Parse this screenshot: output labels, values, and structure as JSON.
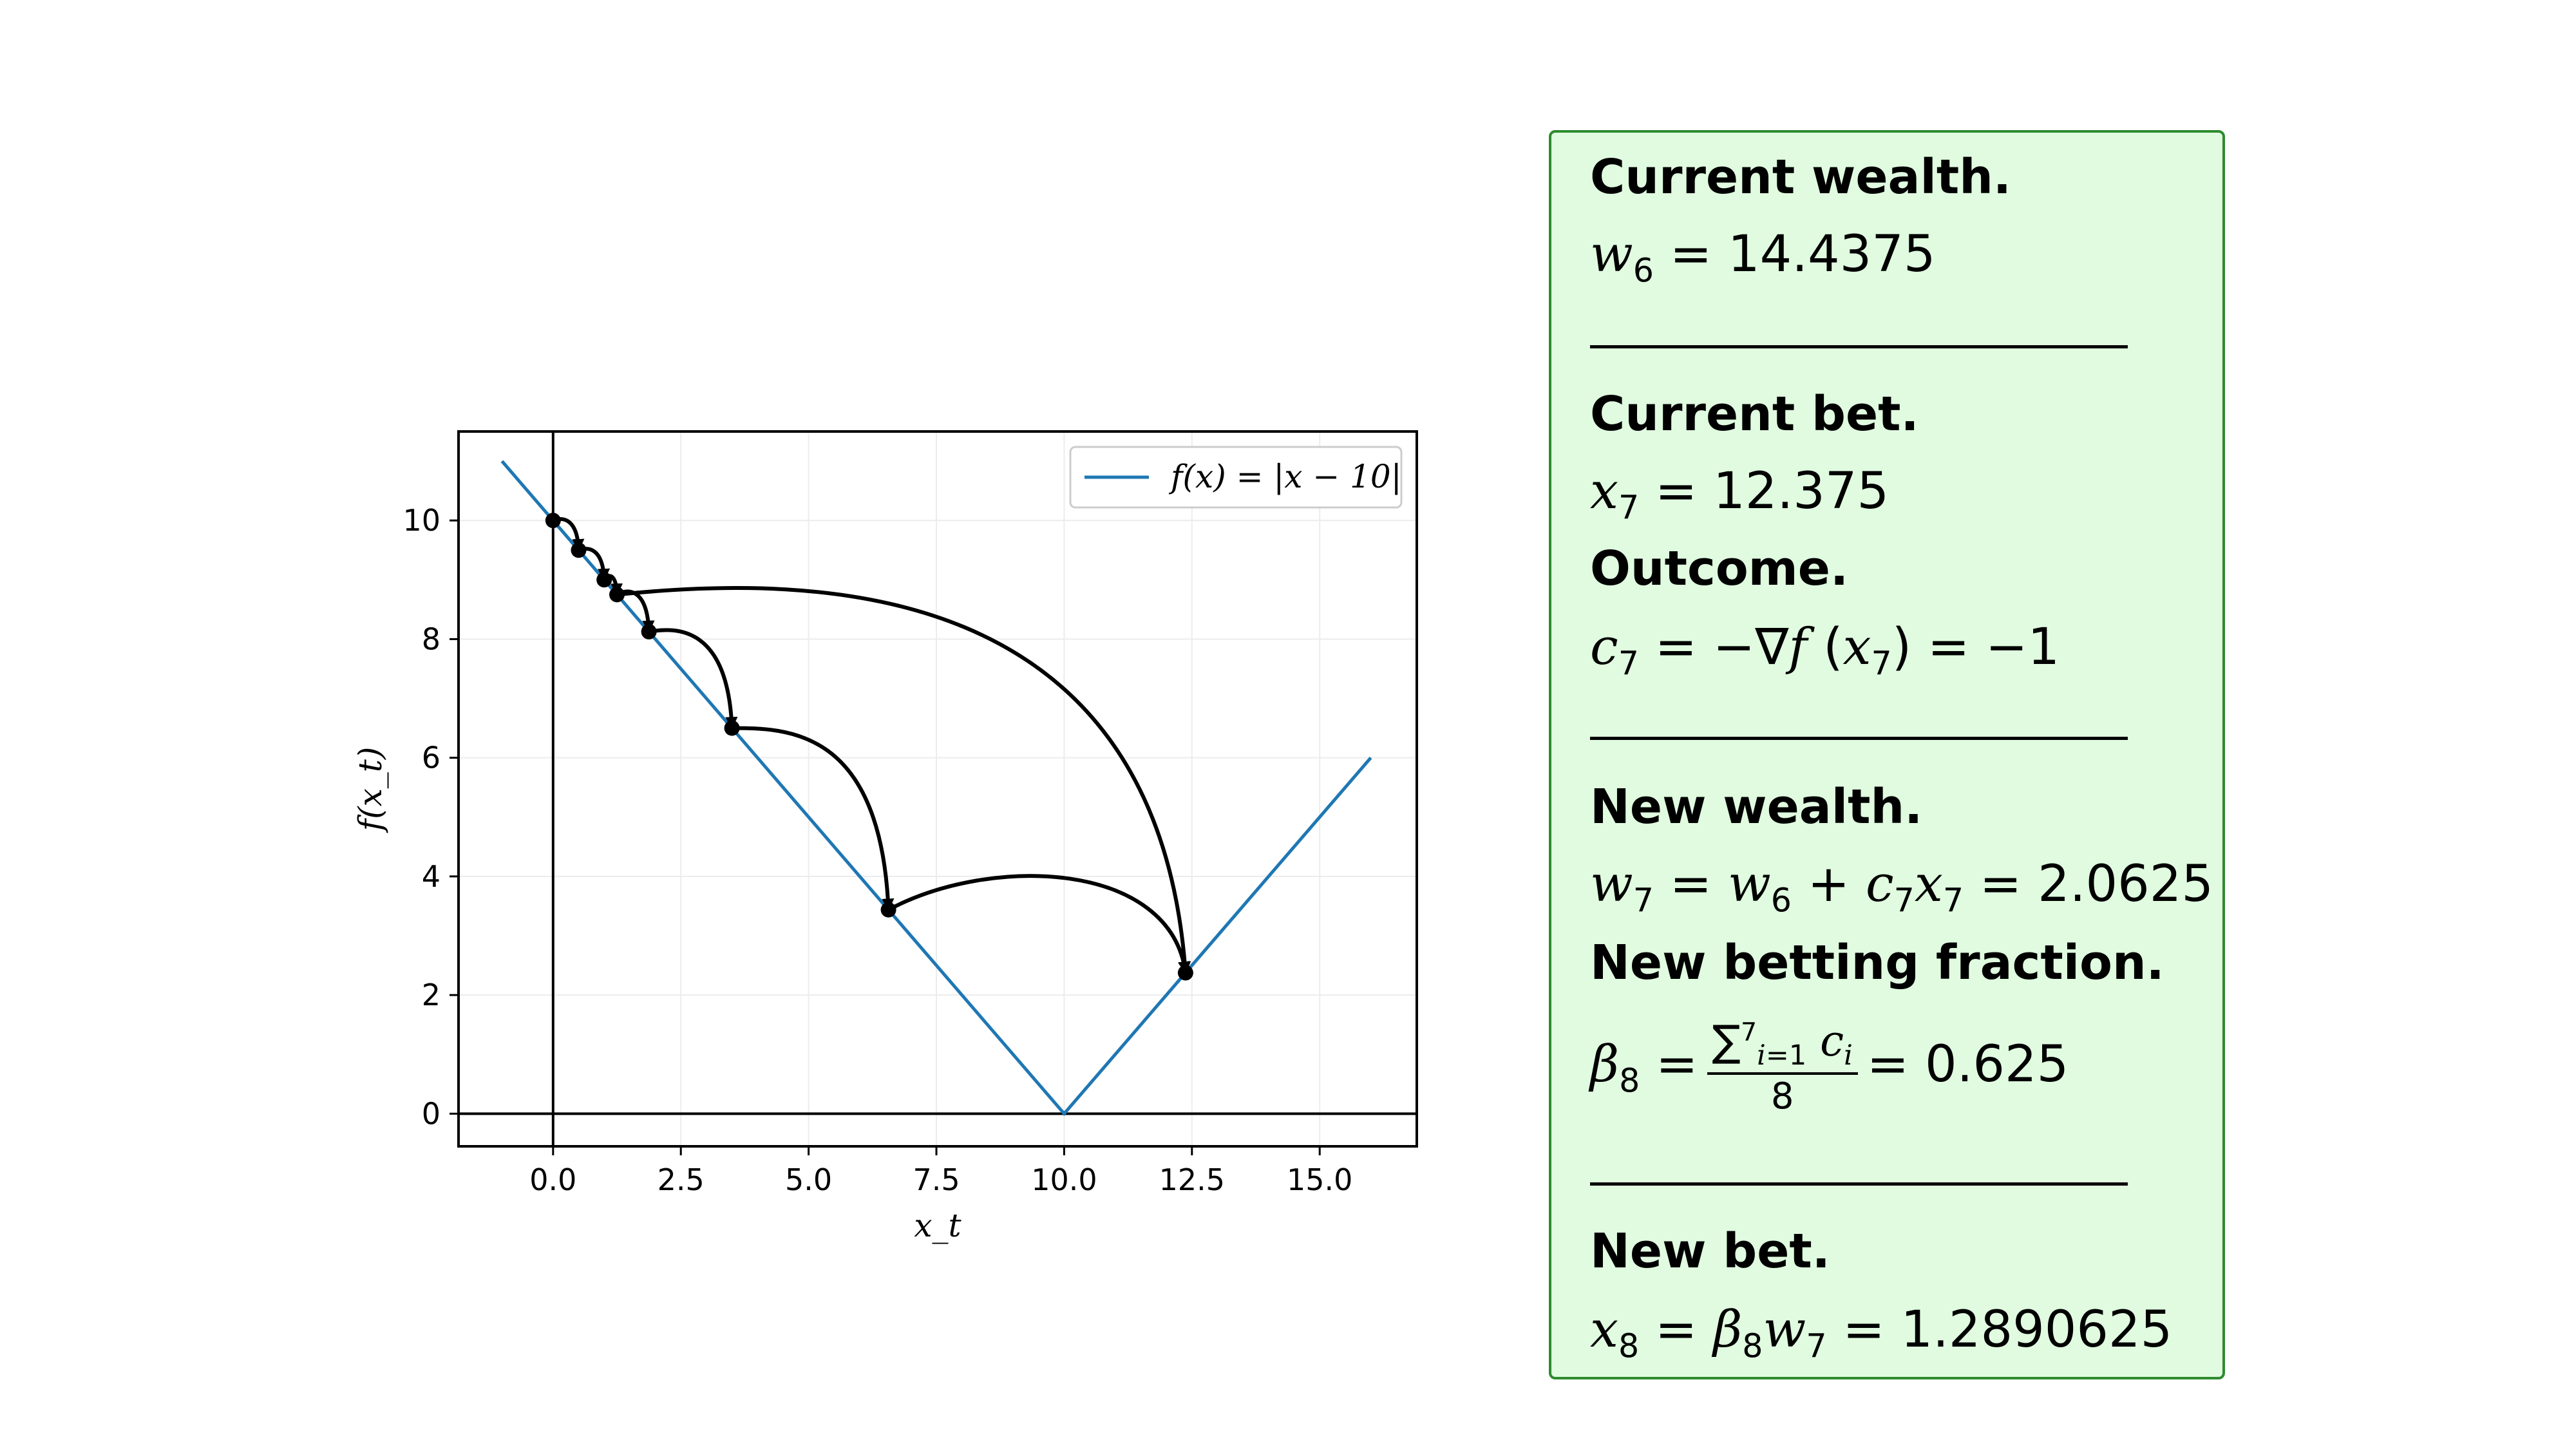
{
  "chart_data": {
    "type": "line",
    "title": "",
    "xlabel": "x_t",
    "ylabel": "f(x_t)",
    "xlim": [
      -1.85,
      16.9
    ],
    "ylim": [
      -0.55,
      11.5
    ],
    "xticks": [
      "0.0",
      "2.5",
      "5.0",
      "7.5",
      "10.0",
      "12.5",
      "15.0"
    ],
    "xtick_values": [
      0,
      2.5,
      5,
      7.5,
      10,
      12.5,
      15
    ],
    "yticks": [
      "0",
      "2",
      "4",
      "6",
      "8",
      "10"
    ],
    "ytick_values": [
      0,
      2,
      4,
      6,
      8,
      10
    ],
    "grid": true,
    "legend": {
      "placement": "top-right",
      "label": "f(x) = |x − 10|"
    },
    "series": [
      {
        "name": "f(x) = |x − 10|",
        "color": "#1f77b4",
        "x": [
          -1,
          10,
          16
        ],
        "y": [
          11,
          0,
          6
        ]
      }
    ],
    "iterates": {
      "color": "#000000",
      "x": [
        0,
        0.5,
        1.0,
        1.25,
        1.875,
        3.5,
        6.5625,
        12.375
      ],
      "y": [
        10,
        9.5,
        9.0,
        8.75,
        8.125,
        6.5,
        3.4375,
        2.375
      ]
    },
    "arrows": [
      {
        "from": 0,
        "to": 1,
        "peak": 10.05
      },
      {
        "from": 1,
        "to": 2,
        "peak": 9.55
      },
      {
        "from": 2,
        "to": 3,
        "peak": 9.1
      },
      {
        "from": 3,
        "to": 4,
        "peak": 8.85
      },
      {
        "from": 4,
        "to": 5,
        "peak": 8.2
      },
      {
        "from": 5,
        "to": 6,
        "peak": 6.5
      },
      {
        "from": 6,
        "to": 7,
        "peak": 4.25
      },
      {
        "from": 3,
        "to": 7,
        "peak": 9.05
      }
    ]
  },
  "panel": {
    "current_wealth_heading": "Current wealth.",
    "current_wealth_eq": "= 14.4375",
    "current_bet_heading": "Current bet.",
    "current_bet_eq": "= 12.375",
    "outcome_heading": "Outcome.",
    "outcome_eq_tail": ") = −1",
    "new_wealth_heading": "New wealth.",
    "new_wealth_eq_tail": "= 2.0625",
    "new_fraction_heading": "New betting fraction.",
    "new_fraction_eq_tail": "= 0.625",
    "new_bet_heading": "New bet.",
    "new_bet_eq_tail": "= 1.2890625"
  }
}
